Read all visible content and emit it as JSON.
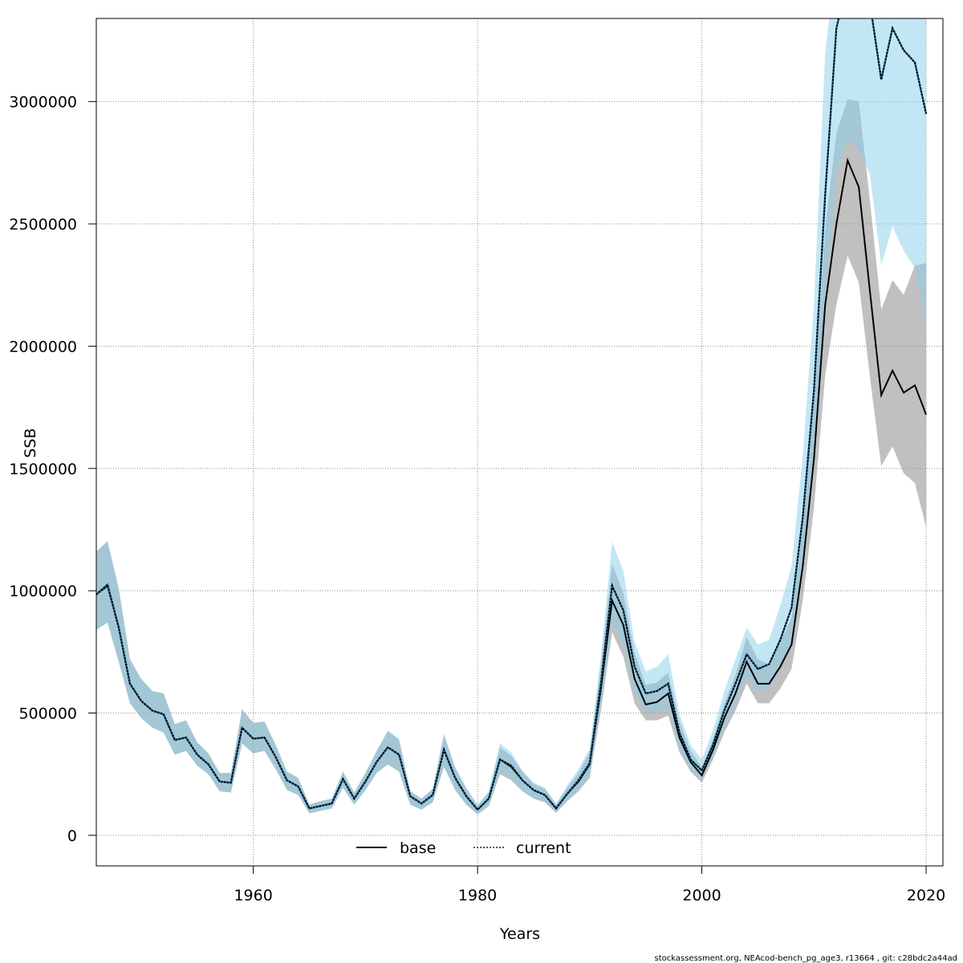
{
  "chart_data": {
    "type": "line",
    "xlabel": "Years",
    "ylabel": "SSB",
    "xlim": [
      1946,
      2021.5
    ],
    "ylim": [
      -125000,
      3340000
    ],
    "x_ticks": [
      1960,
      1980,
      2000,
      2020
    ],
    "y_ticks": [
      0,
      500000,
      1000000,
      1500000,
      2000000,
      2500000,
      3000000
    ],
    "grid": true,
    "legend": "bottom-center",
    "colors": {
      "base_band": "#999999",
      "current_band": "#87ceeb",
      "base_line": "#000000",
      "current_line": "#1f5f8b"
    },
    "series": [
      {
        "name": "base",
        "style": "solid",
        "x": [
          1946,
          1947,
          1948,
          1949,
          1950,
          1951,
          1952,
          1953,
          1954,
          1955,
          1956,
          1957,
          1958,
          1959,
          1960,
          1961,
          1962,
          1963,
          1964,
          1965,
          1966,
          1967,
          1968,
          1969,
          1970,
          1971,
          1972,
          1973,
          1974,
          1975,
          1976,
          1977,
          1978,
          1979,
          1980,
          1981,
          1982,
          1983,
          1984,
          1985,
          1986,
          1987,
          1988,
          1989,
          1990,
          1991,
          1992,
          1993,
          1994,
          1995,
          1996,
          1997,
          1998,
          1999,
          2000,
          2001,
          2002,
          2003,
          2004,
          2005,
          2006,
          2007,
          2008,
          2009,
          2010,
          2011,
          2012,
          2013,
          2014,
          2015,
          2016,
          2017,
          2018,
          2019,
          2020
        ],
        "values": [
          985000,
          1020000,
          850000,
          620000,
          550000,
          510000,
          495000,
          390000,
          400000,
          330000,
          290000,
          220000,
          215000,
          440000,
          395000,
          400000,
          320000,
          225000,
          200000,
          110000,
          120000,
          130000,
          230000,
          150000,
          220000,
          300000,
          360000,
          330000,
          160000,
          130000,
          165000,
          350000,
          235000,
          160000,
          105000,
          150000,
          310000,
          280000,
          225000,
          185000,
          165000,
          110000,
          170000,
          220000,
          290000,
          600000,
          960000,
          860000,
          640000,
          535000,
          545000,
          580000,
          400000,
          300000,
          245000,
          350000,
          480000,
          580000,
          710000,
          620000,
          620000,
          690000,
          780000,
          1100000,
          1540000,
          2170000,
          2500000,
          2760000,
          2650000,
          2220000,
          1800000,
          1900000,
          1810000,
          1840000,
          1720000
        ],
        "lower": [
          840000,
          870000,
          710000,
          540000,
          480000,
          440000,
          420000,
          330000,
          345000,
          285000,
          250000,
          180000,
          175000,
          375000,
          335000,
          345000,
          270000,
          185000,
          165000,
          90000,
          100000,
          110000,
          195000,
          125000,
          185000,
          255000,
          290000,
          260000,
          125000,
          105000,
          135000,
          280000,
          185000,
          125000,
          85000,
          120000,
          250000,
          225000,
          180000,
          150000,
          135000,
          92000,
          140000,
          180000,
          235000,
          510000,
          830000,
          730000,
          540000,
          470000,
          470000,
          490000,
          340000,
          260000,
          215000,
          310000,
          420000,
          510000,
          620000,
          540000,
          540000,
          600000,
          680000,
          960000,
          1340000,
          1880000,
          2170000,
          2370000,
          2260000,
          1870000,
          1510000,
          1590000,
          1480000,
          1440000,
          1260000
        ],
        "upper": [
          1160000,
          1200000,
          1010000,
          720000,
          640000,
          590000,
          580000,
          455000,
          470000,
          380000,
          335000,
          255000,
          255000,
          515000,
          460000,
          465000,
          370000,
          260000,
          235000,
          125000,
          140000,
          150000,
          260000,
          175000,
          255000,
          345000,
          425000,
          390000,
          180000,
          150000,
          190000,
          410000,
          275000,
          190000,
          120000,
          175000,
          360000,
          325000,
          260000,
          210000,
          190000,
          125000,
          195000,
          255000,
          340000,
          700000,
          1110000,
          990000,
          745000,
          615000,
          625000,
          665000,
          465000,
          345000,
          280000,
          395000,
          540000,
          655000,
          810000,
          720000,
          700000,
          790000,
          890000,
          1260000,
          1770000,
          2480000,
          2870000,
          3010000,
          3000000,
          2590000,
          2150000,
          2270000,
          2210000,
          2330000,
          2340000
        ]
      },
      {
        "name": "current",
        "style": "dotted",
        "x": [
          1946,
          1947,
          1948,
          1949,
          1950,
          1951,
          1952,
          1953,
          1954,
          1955,
          1956,
          1957,
          1958,
          1959,
          1960,
          1961,
          1962,
          1963,
          1964,
          1965,
          1966,
          1967,
          1968,
          1969,
          1970,
          1971,
          1972,
          1973,
          1974,
          1975,
          1976,
          1977,
          1978,
          1979,
          1980,
          1981,
          1982,
          1983,
          1984,
          1985,
          1986,
          1987,
          1988,
          1989,
          1990,
          1991,
          1992,
          1993,
          1994,
          1995,
          1996,
          1997,
          1998,
          1999,
          2000,
          2001,
          2002,
          2003,
          2004,
          2005,
          2006,
          2007,
          2008,
          2009,
          2010,
          2011,
          2012,
          2013,
          2014,
          2015,
          2016,
          2017,
          2018,
          2019,
          2020
        ],
        "values": [
          985000,
          1025000,
          850000,
          620000,
          550000,
          510000,
          495000,
          390000,
          400000,
          330000,
          290000,
          220000,
          215000,
          440000,
          395000,
          400000,
          320000,
          225000,
          200000,
          110000,
          120000,
          130000,
          230000,
          150000,
          220000,
          300000,
          360000,
          330000,
          160000,
          130000,
          165000,
          350000,
          235000,
          160000,
          105000,
          150000,
          310000,
          285000,
          225000,
          185000,
          165000,
          110000,
          170000,
          225000,
          295000,
          620000,
          1020000,
          920000,
          690000,
          580000,
          590000,
          620000,
          420000,
          310000,
          265000,
          370000,
          510000,
          620000,
          740000,
          680000,
          700000,
          800000,
          930000,
          1300000,
          1820000,
          2620000,
          3300000,
          3500000,
          3500000,
          3400000,
          3090000,
          3300000,
          3210000,
          3160000,
          2950000
        ],
        "lower": [
          840000,
          870000,
          710000,
          540000,
          480000,
          440000,
          420000,
          330000,
          345000,
          285000,
          250000,
          180000,
          175000,
          375000,
          335000,
          345000,
          270000,
          185000,
          165000,
          90000,
          100000,
          110000,
          195000,
          125000,
          185000,
          255000,
          290000,
          260000,
          125000,
          105000,
          135000,
          280000,
          185000,
          125000,
          85000,
          120000,
          255000,
          230000,
          180000,
          150000,
          135000,
          92000,
          140000,
          185000,
          240000,
          525000,
          870000,
          780000,
          585000,
          500000,
          505000,
          520000,
          355000,
          265000,
          230000,
          325000,
          445000,
          540000,
          645000,
          590000,
          600000,
          680000,
          790000,
          1100000,
          1530000,
          2200000,
          2700000,
          2850000,
          2800000,
          2700000,
          2330000,
          2490000,
          2390000,
          2320000,
          2100000
        ],
        "upper": [
          1160000,
          1205000,
          1010000,
          720000,
          640000,
          590000,
          580000,
          455000,
          470000,
          380000,
          335000,
          255000,
          255000,
          515000,
          460000,
          465000,
          370000,
          260000,
          235000,
          125000,
          140000,
          150000,
          260000,
          175000,
          255000,
          345000,
          430000,
          395000,
          180000,
          150000,
          190000,
          415000,
          280000,
          195000,
          125000,
          180000,
          375000,
          340000,
          265000,
          215000,
          195000,
          130000,
          205000,
          270000,
          355000,
          730000,
          1200000,
          1080000,
          790000,
          670000,
          690000,
          740000,
          495000,
          370000,
          310000,
          430000,
          590000,
          720000,
          850000,
          780000,
          800000,
          940000,
          1100000,
          1550000,
          2170000,
          3200000,
          3600000,
          3600000,
          3600000,
          3600000,
          3600000,
          3600000,
          3600000,
          3600000,
          3600000
        ]
      }
    ]
  },
  "footnote": "stockassessment.org, NEAcod-bench_pg_age3, r13664 , git: c28bdc2a44ad"
}
